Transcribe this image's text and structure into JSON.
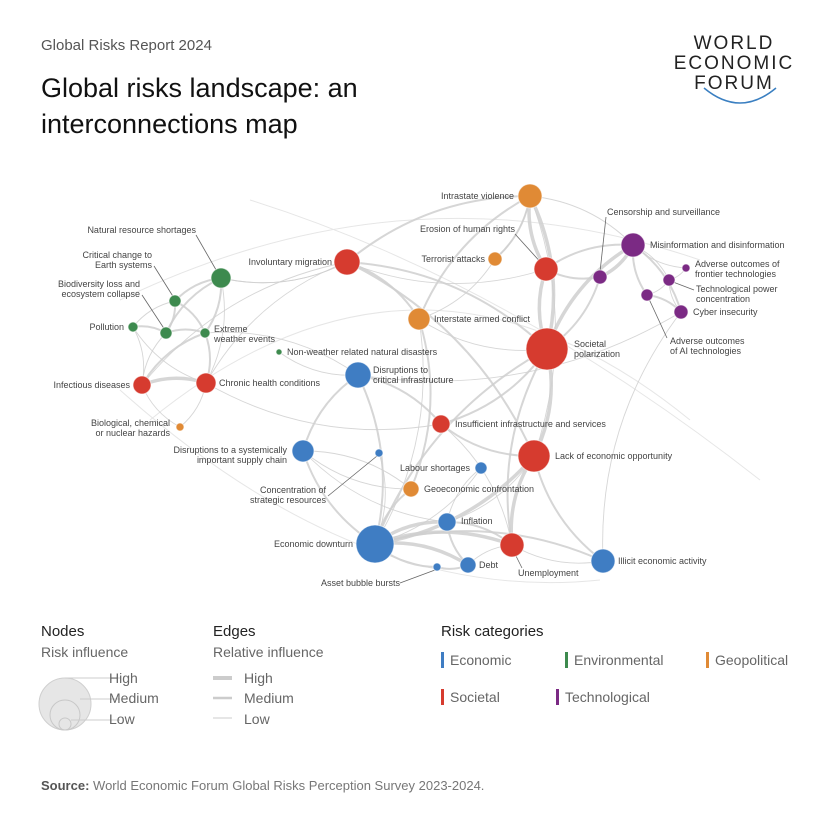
{
  "header": {
    "report": "Global Risks Report 2024",
    "title": "Global risks landscape: an interconnections map",
    "logo": [
      "WORLD",
      "ECONOMIC",
      "FORUM"
    ]
  },
  "colors": {
    "Economic": "#3f7dc3",
    "Environmental": "#3d8a4e",
    "Geopolitical": "#e08a35",
    "Societal": "#d63b2f",
    "Technological": "#7b2a84",
    "edge": "#cfcfcf"
  },
  "nodes": [
    {
      "label": "Intrastate violence",
      "category": "Geopolitical"
    },
    {
      "label": "Erosion of human rights",
      "category": "Societal"
    },
    {
      "label": "Terrorist attacks",
      "category": "Geopolitical"
    },
    {
      "label": "Censorship and surveillance",
      "category": "Technological"
    },
    {
      "label": "Misinformation and disinformation",
      "category": "Technological"
    },
    {
      "label": "Adverse outcomes of frontier technologies",
      "category": "Technological"
    },
    {
      "label": "Technological power concentration",
      "category": "Technological"
    },
    {
      "label": "Cyber insecurity",
      "category": "Technological"
    },
    {
      "label": "Adverse outcomes of AI technologies",
      "category": "Technological"
    },
    {
      "label": "Societal polarization",
      "category": "Societal"
    },
    {
      "label": "Interstate armed conflict",
      "category": "Geopolitical"
    },
    {
      "label": "Involuntary migration",
      "category": "Societal"
    },
    {
      "label": "Natural resource shortages",
      "category": "Environmental"
    },
    {
      "label": "Critical change to Earth systems",
      "category": "Environmental"
    },
    {
      "label": "Biodiversity loss and ecosystem collapse",
      "category": "Environmental"
    },
    {
      "label": "Pollution",
      "category": "Environmental"
    },
    {
      "label": "Extreme weather events",
      "category": "Environmental"
    },
    {
      "label": "Non-weather related natural disasters",
      "category": "Environmental"
    },
    {
      "label": "Infectious diseases",
      "category": "Societal"
    },
    {
      "label": "Chronic health conditions",
      "category": "Societal"
    },
    {
      "label": "Disruptions to critical infrastructure",
      "category": "Economic"
    },
    {
      "label": "Biological, chemical or nuclear hazards",
      "category": "Geopolitical"
    },
    {
      "label": "Insufficient infrastructure and services",
      "category": "Societal"
    },
    {
      "label": "Lack of economic opportunity",
      "category": "Societal"
    },
    {
      "label": "Disruptions to a systemically important supply chain",
      "category": "Economic"
    },
    {
      "label": "Concentration of strategic resources",
      "category": "Economic"
    },
    {
      "label": "Labour shortages",
      "category": "Economic"
    },
    {
      "label": "Geoeconomic confrontation",
      "category": "Geopolitical"
    },
    {
      "label": "Inflation",
      "category": "Economic"
    },
    {
      "label": "Economic downturn",
      "category": "Economic"
    },
    {
      "label": "Asset bubble bursts",
      "category": "Economic"
    },
    {
      "label": "Debt",
      "category": "Economic"
    },
    {
      "label": "Unemployment",
      "category": "Societal"
    },
    {
      "label": "Illicit economic activity",
      "category": "Economic"
    }
  ],
  "edges": [
    [
      0,
      9,
      "high"
    ],
    [
      0,
      1,
      "high"
    ],
    [
      0,
      2,
      "medium"
    ],
    [
      0,
      10,
      "medium"
    ],
    [
      0,
      4,
      "low"
    ],
    [
      0,
      11,
      "medium"
    ],
    [
      0,
      23,
      "low"
    ],
    [
      1,
      9,
      "high"
    ],
    [
      1,
      4,
      "medium"
    ],
    [
      1,
      3,
      "medium"
    ],
    [
      1,
      11,
      "low"
    ],
    [
      2,
      0,
      "low"
    ],
    [
      2,
      10,
      "low"
    ],
    [
      3,
      4,
      "high"
    ],
    [
      3,
      9,
      "medium"
    ],
    [
      4,
      9,
      "high"
    ],
    [
      4,
      7,
      "medium"
    ],
    [
      4,
      8,
      "medium"
    ],
    [
      4,
      6,
      "low"
    ],
    [
      4,
      5,
      "low"
    ],
    [
      5,
      6,
      "low"
    ],
    [
      6,
      7,
      "low"
    ],
    [
      8,
      7,
      "medium"
    ],
    [
      8,
      6,
      "low"
    ],
    [
      7,
      20,
      "low"
    ],
    [
      7,
      33,
      "low"
    ],
    [
      9,
      23,
      "high"
    ],
    [
      9,
      11,
      "medium"
    ],
    [
      9,
      22,
      "medium"
    ],
    [
      9,
      32,
      "medium"
    ],
    [
      9,
      10,
      "low"
    ],
    [
      9,
      29,
      "medium"
    ],
    [
      10,
      27,
      "medium"
    ],
    [
      10,
      11,
      "medium"
    ],
    [
      10,
      29,
      "low"
    ],
    [
      11,
      18,
      "low"
    ],
    [
      11,
      12,
      "low"
    ],
    [
      11,
      19,
      "low"
    ],
    [
      11,
      23,
      "medium"
    ],
    [
      12,
      13,
      "medium"
    ],
    [
      12,
      16,
      "medium"
    ],
    [
      12,
      14,
      "medium"
    ],
    [
      12,
      19,
      "low"
    ],
    [
      12,
      11,
      "low"
    ],
    [
      13,
      14,
      "medium"
    ],
    [
      13,
      15,
      "low"
    ],
    [
      13,
      16,
      "medium"
    ],
    [
      14,
      15,
      "medium"
    ],
    [
      14,
      16,
      "medium"
    ],
    [
      14,
      18,
      "low"
    ],
    [
      15,
      18,
      "low"
    ],
    [
      15,
      19,
      "low"
    ],
    [
      16,
      19,
      "medium"
    ],
    [
      16,
      18,
      "medium"
    ],
    [
      16,
      20,
      "low"
    ],
    [
      17,
      20,
      "low"
    ],
    [
      18,
      19,
      "high"
    ],
    [
      19,
      22,
      "low"
    ],
    [
      21,
      18,
      "low"
    ],
    [
      21,
      19,
      "low"
    ],
    [
      20,
      22,
      "medium"
    ],
    [
      20,
      24,
      "medium"
    ],
    [
      20,
      29,
      "medium"
    ],
    [
      22,
      23,
      "medium"
    ],
    [
      22,
      32,
      "low"
    ],
    [
      23,
      32,
      "high"
    ],
    [
      23,
      29,
      "high"
    ],
    [
      23,
      33,
      "medium"
    ],
    [
      23,
      28,
      "low"
    ],
    [
      24,
      29,
      "medium"
    ],
    [
      24,
      27,
      "low"
    ],
    [
      24,
      28,
      "low"
    ],
    [
      25,
      29,
      "low"
    ],
    [
      26,
      28,
      "low"
    ],
    [
      26,
      29,
      "low"
    ],
    [
      27,
      29,
      "medium"
    ],
    [
      27,
      24,
      "low"
    ],
    [
      28,
      29,
      "high"
    ],
    [
      28,
      32,
      "medium"
    ],
    [
      28,
      31,
      "medium"
    ],
    [
      29,
      31,
      "high"
    ],
    [
      29,
      30,
      "medium"
    ],
    [
      29,
      32,
      "high"
    ],
    [
      30,
      31,
      "medium"
    ],
    [
      31,
      32,
      "low"
    ],
    [
      32,
      33,
      "low"
    ],
    [
      29,
      33,
      "medium"
    ]
  ],
  "legend": {
    "nodes": {
      "heading": "Nodes",
      "sub": "Risk influence",
      "levels": [
        "High",
        "Medium",
        "Low"
      ]
    },
    "edges": {
      "heading": "Edges",
      "sub": "Relative influence",
      "levels": [
        "High",
        "Medium",
        "Low"
      ]
    },
    "categories": {
      "heading": "Risk categories",
      "items": [
        "Economic",
        "Environmental",
        "Geopolitical",
        "Societal",
        "Technological"
      ]
    }
  },
  "source": {
    "label": "Source:",
    "text": "World Economic Forum Global Risks Perception Survey 2023-2024."
  }
}
